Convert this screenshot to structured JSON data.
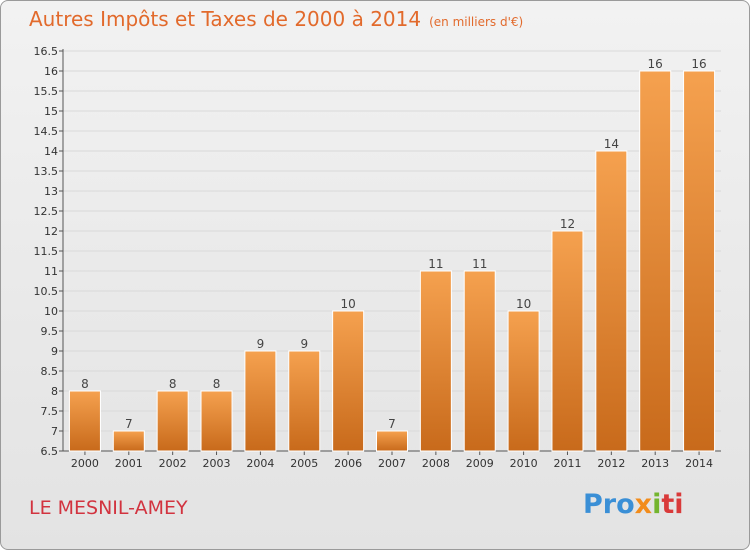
{
  "header": {
    "title": "Autres Impôts et Taxes de 2000 à 2014",
    "subtitle": "(en milliers d'€)"
  },
  "footer": {
    "commune": "LE MESNIL-AMEY",
    "logo_parts": [
      "Pro",
      "x",
      "i",
      "ti"
    ]
  },
  "colors": {
    "bar_top": "#f5a14f",
    "bar_bottom": "#c86a1b",
    "title": "#e26a2c",
    "commune": "#d2333f",
    "grid": "#d9d9d9"
  },
  "chart_data": {
    "type": "bar",
    "title": "Autres Impôts et Taxes de 2000 à 2014",
    "subtitle": "(en milliers d'€)",
    "xlabel": "",
    "ylabel": "",
    "ylim": [
      6.5,
      16.5
    ],
    "yticks": [
      "6.5",
      "7",
      "7.5",
      "8",
      "8.5",
      "9",
      "9.5",
      "10",
      "10.5",
      "11",
      "11.5",
      "12",
      "12.5",
      "13",
      "13.5",
      "14",
      "14.5",
      "15",
      "15.5",
      "16",
      "16.5"
    ],
    "grid": true,
    "categories": [
      "2000",
      "2001",
      "2002",
      "2003",
      "2004",
      "2005",
      "2006",
      "2007",
      "2008",
      "2009",
      "2010",
      "2011",
      "2012",
      "2013",
      "2014"
    ],
    "values": [
      8,
      7,
      8,
      8,
      9,
      9,
      10,
      7,
      11,
      11,
      10,
      12,
      14,
      16,
      16
    ],
    "value_labels": [
      "8",
      "7",
      "8",
      "8",
      "9",
      "9",
      "10",
      "7",
      "11",
      "11",
      "10",
      "12",
      "14",
      "16",
      "16"
    ]
  }
}
